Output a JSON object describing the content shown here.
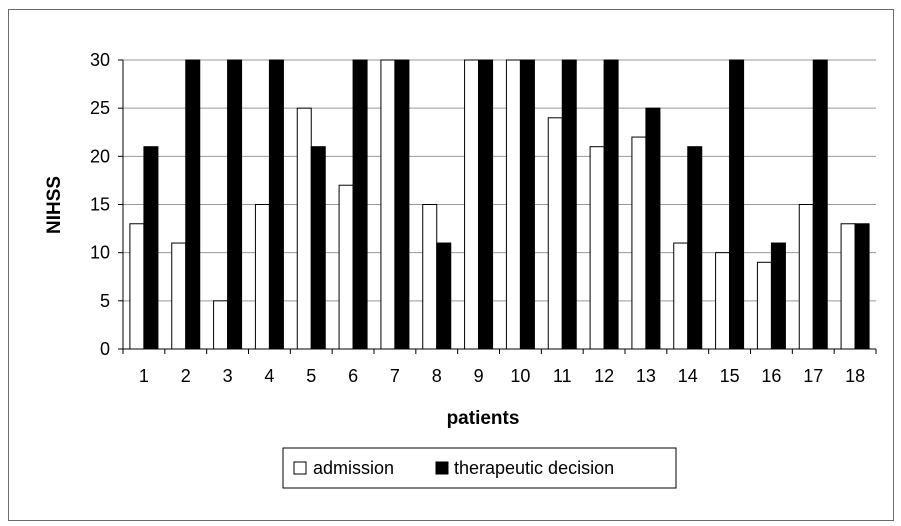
{
  "chart_data": {
    "type": "bar",
    "categories": [
      "1",
      "2",
      "3",
      "4",
      "5",
      "6",
      "7",
      "8",
      "9",
      "10",
      "11",
      "12",
      "13",
      "14",
      "15",
      "16",
      "17",
      "18"
    ],
    "series": [
      {
        "name": "admission",
        "color": "#ffffff",
        "values": [
          13,
          11,
          5,
          15,
          25,
          17,
          30,
          15,
          30,
          30,
          24,
          21,
          22,
          11,
          10,
          9,
          15,
          13
        ]
      },
      {
        "name": "therapeutic decision",
        "color": "#000000",
        "values": [
          21,
          30,
          30,
          30,
          21,
          30,
          30,
          11,
          30,
          30,
          30,
          30,
          25,
          21,
          30,
          11,
          30,
          13
        ]
      }
    ],
    "title": "",
    "xlabel": "patients",
    "ylabel": "NIHSS",
    "ylim": [
      0,
      30
    ],
    "yticks": [
      0,
      5,
      10,
      15,
      20,
      25,
      30
    ],
    "grid": "horizontal",
    "legend_position": "bottom"
  }
}
